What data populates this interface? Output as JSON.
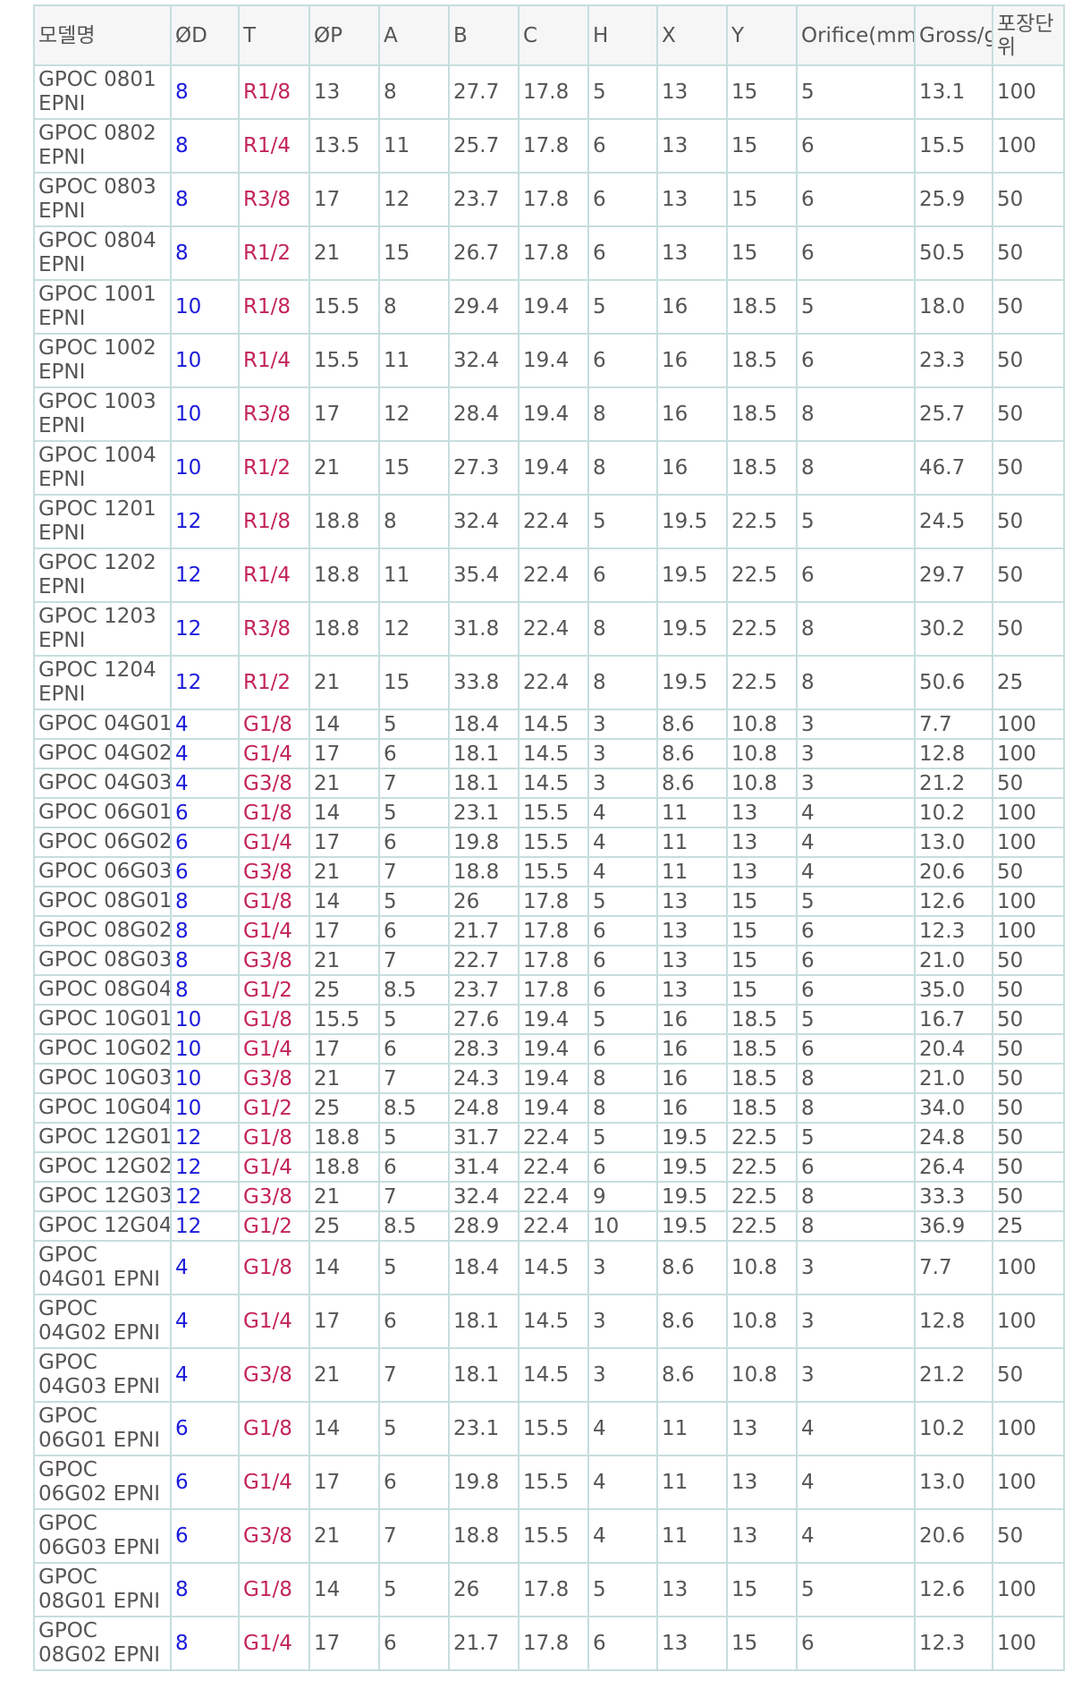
{
  "columns": [
    "모델명",
    "ØD",
    "T",
    "ØP",
    "A",
    "B",
    "C",
    "H",
    "X",
    "Y",
    "Orifice(mm)",
    "Gross/g",
    "포장단위"
  ],
  "colors": {
    "od": "#1a1adb",
    "thread": "#c3245a",
    "text": "#555555",
    "border": "#c6dedd"
  },
  "rows": [
    [
      "GPOC 0801 EPNI",
      "8",
      "R1/8",
      "13",
      "8",
      "27.7",
      "17.8",
      "5",
      "13",
      "15",
      "5",
      "13.1",
      "100"
    ],
    [
      "GPOC 0802 EPNI",
      "8",
      "R1/4",
      "13.5",
      "11",
      "25.7",
      "17.8",
      "6",
      "13",
      "15",
      "6",
      "15.5",
      "100"
    ],
    [
      "GPOC 0803 EPNI",
      "8",
      "R3/8",
      "17",
      "12",
      "23.7",
      "17.8",
      "6",
      "13",
      "15",
      "6",
      "25.9",
      "50"
    ],
    [
      "GPOC 0804 EPNI",
      "8",
      "R1/2",
      "21",
      "15",
      "26.7",
      "17.8",
      "6",
      "13",
      "15",
      "6",
      "50.5",
      "50"
    ],
    [
      "GPOC 1001 EPNI",
      "10",
      "R1/8",
      "15.5",
      "8",
      "29.4",
      "19.4",
      "5",
      "16",
      "18.5",
      "5",
      "18.0",
      "50"
    ],
    [
      "GPOC 1002 EPNI",
      "10",
      "R1/4",
      "15.5",
      "11",
      "32.4",
      "19.4",
      "6",
      "16",
      "18.5",
      "6",
      "23.3",
      "50"
    ],
    [
      "GPOC 1003 EPNI",
      "10",
      "R3/8",
      "17",
      "12",
      "28.4",
      "19.4",
      "8",
      "16",
      "18.5",
      "8",
      "25.7",
      "50"
    ],
    [
      "GPOC 1004 EPNI",
      "10",
      "R1/2",
      "21",
      "15",
      "27.3",
      "19.4",
      "8",
      "16",
      "18.5",
      "8",
      "46.7",
      "50"
    ],
    [
      "GPOC 1201 EPNI",
      "12",
      "R1/8",
      "18.8",
      "8",
      "32.4",
      "22.4",
      "5",
      "19.5",
      "22.5",
      "5",
      "24.5",
      "50"
    ],
    [
      "GPOC 1202 EPNI",
      "12",
      "R1/4",
      "18.8",
      "11",
      "35.4",
      "22.4",
      "6",
      "19.5",
      "22.5",
      "6",
      "29.7",
      "50"
    ],
    [
      "GPOC 1203 EPNI",
      "12",
      "R3/8",
      "18.8",
      "12",
      "31.8",
      "22.4",
      "8",
      "19.5",
      "22.5",
      "8",
      "30.2",
      "50"
    ],
    [
      "GPOC 1204 EPNI",
      "12",
      "R1/2",
      "21",
      "15",
      "33.8",
      "22.4",
      "8",
      "19.5",
      "22.5",
      "8",
      "50.6",
      "25"
    ],
    [
      "GPOC 04G01",
      "4",
      "G1/8",
      "14",
      "5",
      "18.4",
      "14.5",
      "3",
      "8.6",
      "10.8",
      "3",
      "7.7",
      "100"
    ],
    [
      "GPOC 04G02",
      "4",
      "G1/4",
      "17",
      "6",
      "18.1",
      "14.5",
      "3",
      "8.6",
      "10.8",
      "3",
      "12.8",
      "100"
    ],
    [
      "GPOC 04G03",
      "4",
      "G3/8",
      "21",
      "7",
      "18.1",
      "14.5",
      "3",
      "8.6",
      "10.8",
      "3",
      "21.2",
      "50"
    ],
    [
      "GPOC 06G01",
      "6",
      "G1/8",
      "14",
      "5",
      "23.1",
      "15.5",
      "4",
      "11",
      "13",
      "4",
      "10.2",
      "100"
    ],
    [
      "GPOC 06G02",
      "6",
      "G1/4",
      "17",
      "6",
      "19.8",
      "15.5",
      "4",
      "11",
      "13",
      "4",
      "13.0",
      "100"
    ],
    [
      "GPOC 06G03",
      "6",
      "G3/8",
      "21",
      "7",
      "18.8",
      "15.5",
      "4",
      "11",
      "13",
      "4",
      "20.6",
      "50"
    ],
    [
      "GPOC 08G01",
      "8",
      "G1/8",
      "14",
      "5",
      "26",
      "17.8",
      "5",
      "13",
      "15",
      "5",
      "12.6",
      "100"
    ],
    [
      "GPOC 08G02",
      "8",
      "G1/4",
      "17",
      "6",
      "21.7",
      "17.8",
      "6",
      "13",
      "15",
      "6",
      "12.3",
      "100"
    ],
    [
      "GPOC 08G03",
      "8",
      "G3/8",
      "21",
      "7",
      "22.7",
      "17.8",
      "6",
      "13",
      "15",
      "6",
      "21.0",
      "50"
    ],
    [
      "GPOC 08G04",
      "8",
      "G1/2",
      "25",
      "8.5",
      "23.7",
      "17.8",
      "6",
      "13",
      "15",
      "6",
      "35.0",
      "50"
    ],
    [
      "GPOC 10G01",
      "10",
      "G1/8",
      "15.5",
      "5",
      "27.6",
      "19.4",
      "5",
      "16",
      "18.5",
      "5",
      "16.7",
      "50"
    ],
    [
      "GPOC 10G02",
      "10",
      "G1/4",
      "17",
      "6",
      "28.3",
      "19.4",
      "6",
      "16",
      "18.5",
      "6",
      "20.4",
      "50"
    ],
    [
      "GPOC 10G03",
      "10",
      "G3/8",
      "21",
      "7",
      "24.3",
      "19.4",
      "8",
      "16",
      "18.5",
      "8",
      "21.0",
      "50"
    ],
    [
      "GPOC 10G04",
      "10",
      "G1/2",
      "25",
      "8.5",
      "24.8",
      "19.4",
      "8",
      "16",
      "18.5",
      "8",
      "34.0",
      "50"
    ],
    [
      "GPOC 12G01",
      "12",
      "G1/8",
      "18.8",
      "5",
      "31.7",
      "22.4",
      "5",
      "19.5",
      "22.5",
      "5",
      "24.8",
      "50"
    ],
    [
      "GPOC 12G02",
      "12",
      "G1/4",
      "18.8",
      "6",
      "31.4",
      "22.4",
      "6",
      "19.5",
      "22.5",
      "6",
      "26.4",
      "50"
    ],
    [
      "GPOC 12G03",
      "12",
      "G3/8",
      "21",
      "7",
      "32.4",
      "22.4",
      "9",
      "19.5",
      "22.5",
      "8",
      "33.3",
      "50"
    ],
    [
      "GPOC 12G04",
      "12",
      "G1/2",
      "25",
      "8.5",
      "28.9",
      "22.4",
      "10",
      "19.5",
      "22.5",
      "8",
      "36.9",
      "25"
    ],
    [
      "GPOC 04G01 EPNI",
      "4",
      "G1/8",
      "14",
      "5",
      "18.4",
      "14.5",
      "3",
      "8.6",
      "10.8",
      "3",
      "7.7",
      "100"
    ],
    [
      "GPOC 04G02 EPNI",
      "4",
      "G1/4",
      "17",
      "6",
      "18.1",
      "14.5",
      "3",
      "8.6",
      "10.8",
      "3",
      "12.8",
      "100"
    ],
    [
      "GPOC 04G03 EPNI",
      "4",
      "G3/8",
      "21",
      "7",
      "18.1",
      "14.5",
      "3",
      "8.6",
      "10.8",
      "3",
      "21.2",
      "50"
    ],
    [
      "GPOC 06G01 EPNI",
      "6",
      "G1/8",
      "14",
      "5",
      "23.1",
      "15.5",
      "4",
      "11",
      "13",
      "4",
      "10.2",
      "100"
    ],
    [
      "GPOC 06G02 EPNI",
      "6",
      "G1/4",
      "17",
      "6",
      "19.8",
      "15.5",
      "4",
      "11",
      "13",
      "4",
      "13.0",
      "100"
    ],
    [
      "GPOC 06G03 EPNI",
      "6",
      "G3/8",
      "21",
      "7",
      "18.8",
      "15.5",
      "4",
      "11",
      "13",
      "4",
      "20.6",
      "50"
    ],
    [
      "GPOC 08G01 EPNI",
      "8",
      "G1/8",
      "14",
      "5",
      "26",
      "17.8",
      "5",
      "13",
      "15",
      "5",
      "12.6",
      "100"
    ],
    [
      "GPOC 08G02 EPNI",
      "8",
      "G1/4",
      "17",
      "6",
      "21.7",
      "17.8",
      "6",
      "13",
      "15",
      "6",
      "12.3",
      "100"
    ]
  ]
}
